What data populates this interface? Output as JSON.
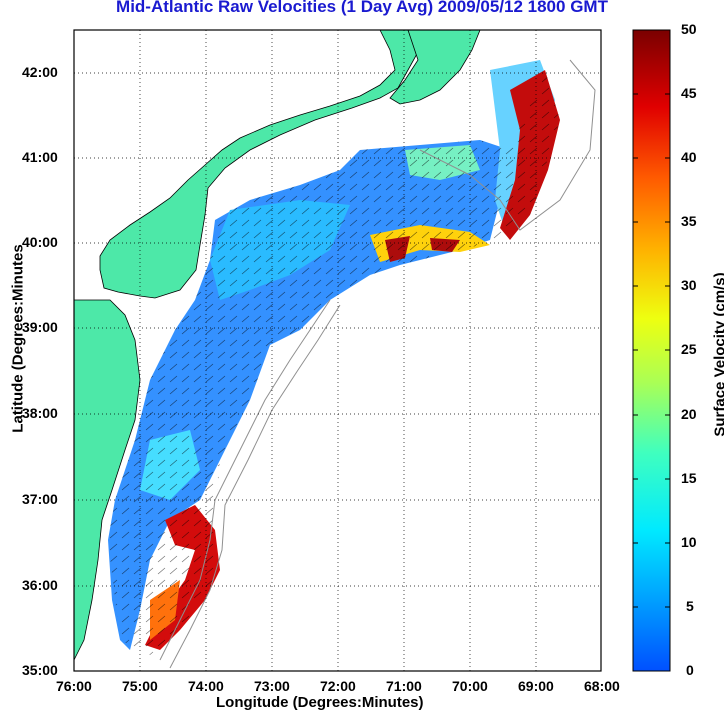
{
  "title": "Mid-Atlantic Raw Velocities (1 Day Avg) 2009/05/12 1800 GMT",
  "xlabel": "Longitude (Degrees:Minutes)",
  "ylabel": "Latitude (Degrees:Minutes",
  "colorbar_label": "Surface Velocity (cm/s)",
  "x_ticks": [
    "76:00",
    "75:00",
    "74:00",
    "73:00",
    "72:00",
    "71:00",
    "70:00",
    "69:00",
    "68:00"
  ],
  "y_ticks": [
    "42:00",
    "41:00",
    "40:00",
    "39:00",
    "38:00",
    "37:00",
    "36:00",
    "35:00"
  ],
  "colorbar_ticks": [
    "50",
    "45",
    "40",
    "35",
    "30",
    "25",
    "20",
    "15",
    "10",
    "5",
    "0"
  ],
  "colors": {
    "land": "#4de8a8",
    "title": "#1a1ad0",
    "grid": "#000000"
  },
  "map_extent": {
    "lon": [
      -76,
      -68
    ],
    "lat": [
      35,
      42.5
    ],
    "colorbar": [
      0,
      50
    ]
  }
}
